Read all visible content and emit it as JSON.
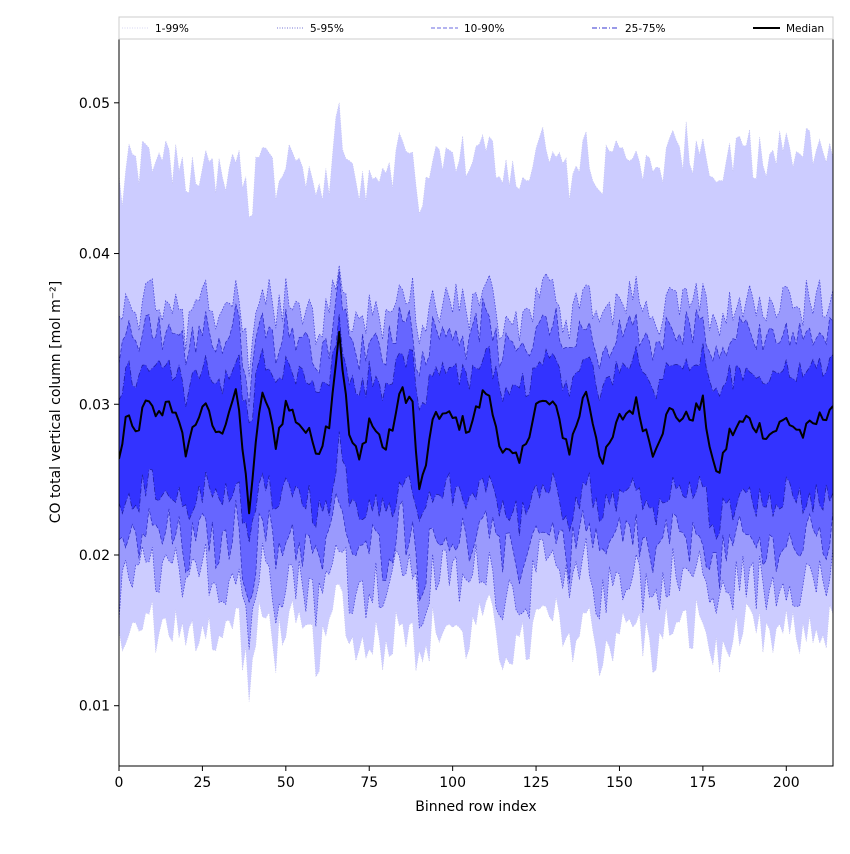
{
  "chart_data": {
    "type": "area",
    "title": "",
    "xlabel": "Binned row index",
    "ylabel": "CO total vertical column [mol m⁻²]",
    "xlim": [
      0,
      214
    ],
    "ylim": [
      0.006,
      0.0543
    ],
    "xticks": [
      0,
      25,
      50,
      75,
      100,
      125,
      150,
      175,
      200
    ],
    "yticks": [
      0.01,
      0.02,
      0.03,
      0.04,
      0.05
    ],
    "ytick_labels": [
      "0.01",
      "0.02",
      "0.03",
      "0.04",
      "0.05"
    ],
    "grid": false,
    "legend_position": "top",
    "n_bins": 215,
    "bands": [
      {
        "name": "1-99%",
        "color": "#ccccff",
        "edge": "#c4c4f0",
        "lower_mean": 0.015,
        "upper_mean": 0.0455,
        "lower_amp": 0.002,
        "upper_amp": 0.002
      },
      {
        "name": "5-95%",
        "color": "#9a9afd",
        "edge": "#3b3bd0",
        "lower_mean": 0.0185,
        "upper_mean": 0.0365,
        "lower_amp": 0.0022,
        "upper_amp": 0.0018
      },
      {
        "name": "10-90%",
        "color": "#6666ff",
        "edge": "#2a2ac0",
        "lower_mean": 0.021,
        "upper_mean": 0.0345,
        "lower_amp": 0.002,
        "upper_amp": 0.0016
      },
      {
        "name": "25-75%",
        "color": "#3333ff",
        "edge": "#1b1b9e",
        "lower_mean": 0.024,
        "upper_mean": 0.032,
        "lower_amp": 0.0014,
        "upper_amp": 0.0012
      }
    ],
    "median": {
      "name": "Median",
      "color": "#000000",
      "points": [
        [
          0,
          0.0262
        ],
        [
          2,
          0.029
        ],
        [
          5,
          0.028
        ],
        [
          8,
          0.03
        ],
        [
          12,
          0.0292
        ],
        [
          15,
          0.0305
        ],
        [
          20,
          0.027
        ],
        [
          25,
          0.03
        ],
        [
          30,
          0.0278
        ],
        [
          35,
          0.031
        ],
        [
          39,
          0.0231
        ],
        [
          43,
          0.031
        ],
        [
          47,
          0.0275
        ],
        [
          50,
          0.03
        ],
        [
          55,
          0.0285
        ],
        [
          60,
          0.027
        ],
        [
          63,
          0.029
        ],
        [
          66,
          0.0349
        ],
        [
          69,
          0.028
        ],
        [
          72,
          0.0262
        ],
        [
          75,
          0.029
        ],
        [
          80,
          0.027
        ],
        [
          85,
          0.031
        ],
        [
          88,
          0.03
        ],
        [
          90,
          0.024
        ],
        [
          95,
          0.0295
        ],
        [
          100,
          0.029
        ],
        [
          105,
          0.0285
        ],
        [
          110,
          0.031
        ],
        [
          115,
          0.027
        ],
        [
          120,
          0.026
        ],
        [
          125,
          0.03
        ],
        [
          130,
          0.03
        ],
        [
          135,
          0.027
        ],
        [
          140,
          0.031
        ],
        [
          145,
          0.026
        ],
        [
          150,
          0.029
        ],
        [
          155,
          0.03
        ],
        [
          160,
          0.027
        ],
        [
          165,
          0.0295
        ],
        [
          170,
          0.029
        ],
        [
          175,
          0.03
        ],
        [
          179,
          0.025
        ],
        [
          183,
          0.028
        ],
        [
          188,
          0.029
        ],
        [
          195,
          0.028
        ],
        [
          200,
          0.029
        ],
        [
          205,
          0.028
        ],
        [
          210,
          0.029
        ],
        [
          214,
          0.03
        ]
      ]
    },
    "legend": [
      {
        "label": "1-99%",
        "color": "#c8c8ee",
        "style": "dotted",
        "width": 0.8
      },
      {
        "label": "5-95%",
        "color": "#4a4ac8",
        "style": "dotted",
        "width": 0.8
      },
      {
        "label": "10-90%",
        "color": "#6a6ae0",
        "style": "dashed",
        "width": 1
      },
      {
        "label": "25-75%",
        "color": "#3535d0",
        "style": "dashdot",
        "width": 1
      },
      {
        "label": "Median",
        "color": "#000000",
        "style": "solid",
        "width": 2
      }
    ]
  }
}
